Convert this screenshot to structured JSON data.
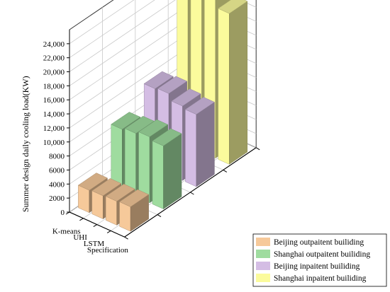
{
  "chart_data": {
    "type": "bar",
    "view": "3d",
    "categories": [
      "K-means",
      "UHI",
      "LSTM",
      "Specification"
    ],
    "ylabel": "Summer design daily cooling load(KW)",
    "xlabel": "",
    "yticks": [
      "0",
      "2000",
      "4000",
      "6000",
      "8000",
      "10,000",
      "12,000",
      "14,000",
      "16,000",
      "18,000",
      "20,000",
      "22,000",
      "24,000"
    ],
    "ylim": [
      0,
      26000
    ],
    "grid": true,
    "legend_position": "bottom-right",
    "series": [
      {
        "name": "Beijing outpaitent builiding",
        "color": "#f6c99a",
        "values": [
          3200,
          3300,
          3400,
          3500
        ]
      },
      {
        "name": "Shanghai outpaitent builiding",
        "color": "#9fdc9f",
        "values": [
          8700,
          9000,
          9400,
          9000
        ]
      },
      {
        "name": "Beijing inpaitent builiding",
        "color": "#d4bde4",
        "values": [
          11300,
          11500,
          10600,
          10300
        ]
      },
      {
        "name": "Shanghai inpaitent builiding",
        "color": "#fbfb9c",
        "values": [
          22900,
          23000,
          24000,
          21500
        ]
      }
    ]
  }
}
